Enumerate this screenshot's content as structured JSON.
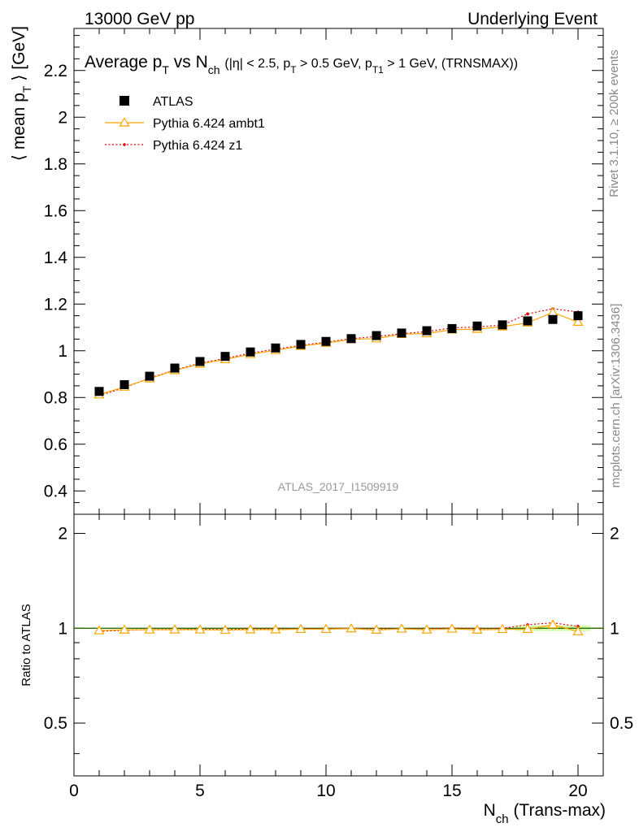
{
  "header": {
    "left": "13000 GeV pp",
    "right": "Underlying Event"
  },
  "side_labels": {
    "rivet": "Rivet 3.1.10, ≥ 200k events",
    "mcplots": "mcplots.cern.ch [arXiv:1306.3436]"
  },
  "chart_data": {
    "type": "scatter",
    "title": "Average p_T vs N_ch (|η| < 2.5, p_T > 0.5 GeV, p_T1 > 1 GeV, (TRNSMAX))",
    "ylabel": "⟨ mean p_T ⟩ [GeV]",
    "xlabel": "N_ch (Trans-max)",
    "ratio_ylabel": "Ratio to ATLAS",
    "watermark": "ATLAS_2017_I1509919",
    "xlim": [
      0,
      21
    ],
    "ylim": [
      0.3,
      2.38
    ],
    "ratio_ylim": [
      0.34,
      2.3
    ],
    "x_ticks": [
      0,
      5,
      10,
      15,
      20
    ],
    "y_ticks": [
      0.4,
      0.6,
      0.8,
      1,
      1.2,
      1.4,
      1.6,
      1.8,
      2,
      2.2
    ],
    "ratio_ticks": [
      0.5,
      1,
      2
    ],
    "legend_position": "top-left",
    "x": [
      1,
      2,
      3,
      4,
      5,
      6,
      7,
      8,
      9,
      10,
      11,
      12,
      13,
      14,
      15,
      16,
      17,
      18,
      19,
      20
    ],
    "series": [
      {
        "name": "ATLAS",
        "color": "#000000",
        "values": [
          0.826,
          0.855,
          0.891,
          0.926,
          0.954,
          0.976,
          0.995,
          1.012,
          1.027,
          1.04,
          1.052,
          1.065,
          1.076,
          1.086,
          1.095,
          1.106,
          1.111,
          1.128,
          1.134,
          1.15
        ]
      },
      {
        "name": "Pythia 6.424 ambt1",
        "color": "#ffa500",
        "values": [
          0.812,
          0.845,
          0.881,
          0.916,
          0.944,
          0.963,
          0.985,
          1.002,
          1.02,
          1.033,
          1.049,
          1.052,
          1.071,
          1.074,
          1.09,
          1.093,
          1.103,
          1.12,
          1.164,
          1.123
        ]
      },
      {
        "name": "Pythia 6.424 z1",
        "color": "#e00000",
        "values": [
          0.808,
          0.842,
          0.883,
          0.918,
          0.947,
          0.967,
          0.99,
          1.007,
          1.023,
          1.037,
          1.052,
          1.061,
          1.073,
          1.082,
          1.098,
          1.102,
          1.11,
          1.158,
          1.18,
          1.166
        ]
      }
    ]
  }
}
